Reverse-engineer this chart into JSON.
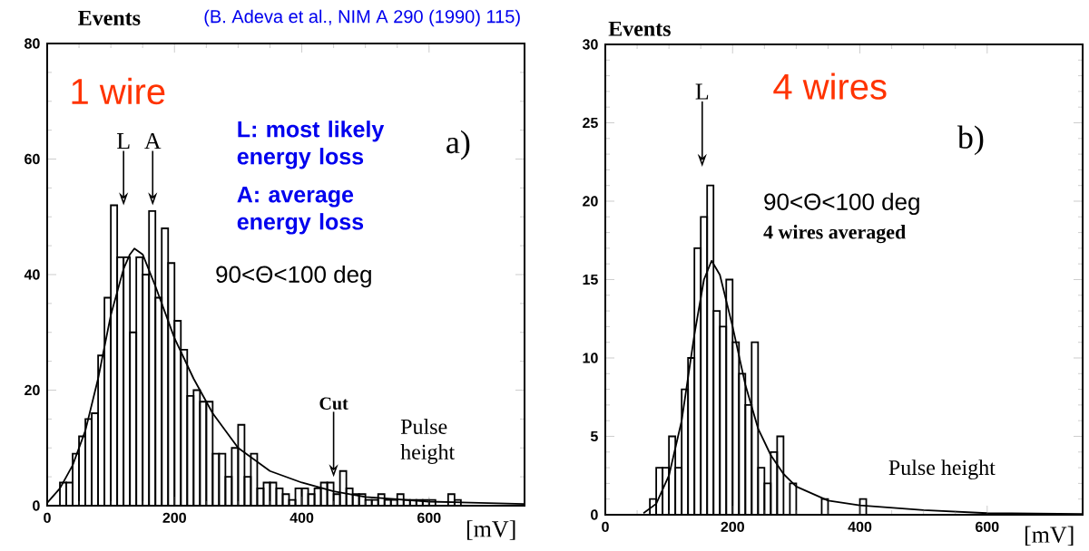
{
  "chart_data": [
    {
      "type": "histogram",
      "xlabel": "[mV]",
      "ylabel": "Events",
      "xlim": [
        0,
        750
      ],
      "ylim": [
        0,
        80
      ],
      "xticks": [
        0,
        200,
        400,
        600
      ],
      "yticks": [
        0,
        20,
        40,
        60,
        80
      ],
      "color": "#000000",
      "bins": [
        0,
        10,
        20,
        30,
        40,
        50,
        60,
        70,
        80,
        90,
        100,
        110,
        120,
        130,
        140,
        150,
        160,
        170,
        180,
        190,
        200,
        210,
        220,
        230,
        240,
        250,
        260,
        270,
        280,
        290,
        300,
        310,
        320,
        330,
        340,
        350,
        360,
        370,
        380,
        390,
        400,
        410,
        420,
        430,
        440,
        450,
        460,
        470,
        480,
        490,
        500,
        510,
        520,
        530,
        540,
        550,
        560,
        570,
        580,
        590,
        600,
        610,
        620,
        630,
        640,
        650
      ],
      "values": [
        0,
        0,
        4,
        4,
        9,
        12,
        15,
        16,
        26,
        36,
        52,
        43,
        43,
        30,
        43,
        40,
        51,
        36,
        48,
        42,
        32,
        27,
        19,
        20,
        18,
        18,
        9,
        9,
        5,
        10,
        14,
        5,
        9,
        3,
        4,
        4,
        3,
        2,
        1,
        3,
        3,
        2,
        3,
        4,
        4,
        2,
        6,
        3,
        2,
        2,
        1,
        1,
        2,
        1,
        1,
        2,
        1,
        1,
        1,
        1,
        1,
        0,
        0,
        2,
        1
      ],
      "series": [
        {
          "type": "line",
          "color": "#000000",
          "x": [
            0,
            20,
            40,
            60,
            80,
            100,
            120,
            130,
            137,
            150,
            170,
            200,
            230,
            260,
            300,
            350,
            400,
            450,
            500,
            600,
            750
          ],
          "values": [
            0.5,
            3,
            7,
            13,
            22,
            33,
            41,
            43.5,
            44.5,
            43.5,
            38,
            29,
            22,
            16,
            10,
            6,
            4,
            2.5,
            1.5,
            0.7,
            0.3
          ]
        }
      ],
      "annotations": [
        "L",
        "A",
        "Cut",
        "1 wire",
        "L: most likely energy loss",
        "A: average energy loss",
        "90<Θ<100 deg",
        "a)",
        "Pulse height",
        "(B. Adeva et al., NIM A 290 (1990) 115)"
      ]
    },
    {
      "type": "histogram",
      "xlabel": "[mV]",
      "ylabel": "Events",
      "xlim": [
        0,
        750
      ],
      "ylim": [
        0,
        30
      ],
      "xticks": [
        0,
        200,
        400,
        600
      ],
      "yticks": [
        0,
        5,
        10,
        15,
        20,
        25,
        30
      ],
      "color": "#000000",
      "bins": [
        70,
        80,
        90,
        100,
        110,
        120,
        130,
        140,
        150,
        160,
        170,
        180,
        190,
        200,
        210,
        220,
        230,
        240,
        250,
        260,
        270,
        280,
        290,
        300,
        310,
        320,
        330,
        340,
        350,
        360,
        370,
        380,
        390,
        400,
        410
      ],
      "values": [
        1,
        3,
        3,
        5,
        3,
        8,
        10,
        17,
        19,
        21,
        13,
        12,
        15,
        11,
        9,
        7,
        11,
        3,
        2,
        4,
        5,
        0,
        2,
        0,
        0,
        0,
        0,
        1,
        0,
        0,
        0,
        0,
        0,
        1
      ],
      "series": [
        {
          "type": "line",
          "color": "#000000",
          "x": [
            60,
            80,
            100,
            120,
            140,
            155,
            167,
            180,
            200,
            220,
            240,
            260,
            280,
            300,
            350,
            400,
            500,
            600,
            750
          ],
          "values": [
            0.1,
            0.7,
            2.5,
            6,
            11.5,
            15,
            16.2,
            15.3,
            12,
            8.3,
            5.5,
            3.8,
            2.6,
            1.8,
            0.9,
            0.6,
            0.3,
            0.1,
            0.05
          ]
        }
      ],
      "annotations": [
        "L",
        "4 wires",
        "b)",
        "90<Θ<100 deg",
        "4 wires averaged",
        "Pulse height"
      ]
    }
  ]
}
